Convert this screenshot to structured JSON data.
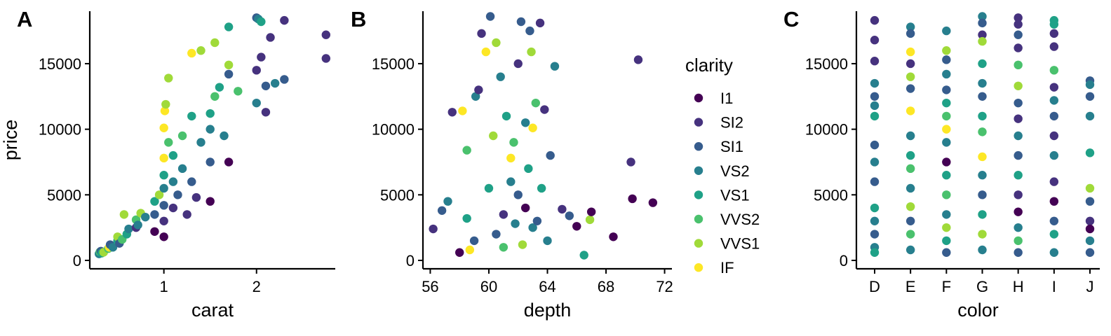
{
  "legend": {
    "title": "clarity",
    "entries": [
      {
        "label": "I1",
        "color": "#440154"
      },
      {
        "label": "SI2",
        "color": "#46327e"
      },
      {
        "label": "SI1",
        "color": "#365c8d"
      },
      {
        "label": "VS2",
        "color": "#277f8e"
      },
      {
        "label": "VS1",
        "color": "#1fa187"
      },
      {
        "label": "VVS2",
        "color": "#4ac16d"
      },
      {
        "label": "VVS1",
        "color": "#a0da39"
      },
      {
        "label": "IF",
        "color": "#fde725"
      }
    ]
  },
  "chart_data": [
    {
      "panel": "A",
      "type": "scatter",
      "xlabel": "carat",
      "ylabel": "price",
      "xlim": [
        0.2,
        2.85
      ],
      "ylim": [
        -300,
        19000
      ],
      "xticks": [
        {
          "value": 1,
          "label": "1"
        },
        {
          "value": 2,
          "label": "2"
        }
      ],
      "yticks": [
        {
          "value": 0,
          "label": "0"
        },
        {
          "value": 5000,
          "label": "5000"
        },
        {
          "value": 10000,
          "label": "10000"
        },
        {
          "value": 15000,
          "label": "15000"
        }
      ],
      "color_by": "clarity",
      "points": [
        [
          0.3,
          500,
          3
        ],
        [
          0.31,
          650,
          5
        ],
        [
          0.32,
          700,
          2
        ],
        [
          0.33,
          560,
          4
        ],
        [
          0.35,
          620,
          6
        ],
        [
          0.4,
          900,
          5
        ],
        [
          0.41,
          1000,
          7
        ],
        [
          0.42,
          1200,
          2
        ],
        [
          0.45,
          1000,
          3
        ],
        [
          0.5,
          1500,
          4
        ],
        [
          0.5,
          1800,
          6
        ],
        [
          0.52,
          1300,
          2
        ],
        [
          0.55,
          1600,
          5
        ],
        [
          0.57,
          3500,
          6
        ],
        [
          0.6,
          2000,
          4
        ],
        [
          0.62,
          2400,
          3
        ],
        [
          0.7,
          2500,
          1
        ],
        [
          0.7,
          3100,
          5
        ],
        [
          0.72,
          2700,
          3
        ],
        [
          0.75,
          3600,
          6
        ],
        [
          0.8,
          3300,
          3
        ],
        [
          0.9,
          2200,
          0
        ],
        [
          0.9,
          3500,
          2
        ],
        [
          0.9,
          4500,
          4
        ],
        [
          0.95,
          5000,
          6
        ],
        [
          1.0,
          1800,
          0
        ],
        [
          1.0,
          3000,
          1
        ],
        [
          1.0,
          4200,
          2
        ],
        [
          1.0,
          5500,
          3
        ],
        [
          1.0,
          6500,
          4
        ],
        [
          1.0,
          7800,
          7
        ],
        [
          1.0,
          10100,
          7
        ],
        [
          1.01,
          11400,
          7
        ],
        [
          1.02,
          11900,
          6
        ],
        [
          1.05,
          9000,
          5
        ],
        [
          1.05,
          13900,
          6
        ],
        [
          1.1,
          4000,
          1
        ],
        [
          1.1,
          6000,
          3
        ],
        [
          1.1,
          8000,
          4
        ],
        [
          1.15,
          5000,
          2
        ],
        [
          1.2,
          7000,
          3
        ],
        [
          1.2,
          9500,
          5
        ],
        [
          1.25,
          3500,
          1
        ],
        [
          1.3,
          6000,
          2
        ],
        [
          1.3,
          11000,
          4
        ],
        [
          1.3,
          15800,
          7
        ],
        [
          1.35,
          4800,
          1
        ],
        [
          1.4,
          9000,
          3
        ],
        [
          1.4,
          16000,
          6
        ],
        [
          1.5,
          4500,
          0
        ],
        [
          1.5,
          7500,
          2
        ],
        [
          1.5,
          10000,
          3
        ],
        [
          1.5,
          11200,
          4
        ],
        [
          1.55,
          12500,
          5
        ],
        [
          1.55,
          16600,
          6
        ],
        [
          1.6,
          13200,
          4
        ],
        [
          1.65,
          9500,
          3
        ],
        [
          1.7,
          7500,
          0
        ],
        [
          1.7,
          14200,
          2
        ],
        [
          1.7,
          14900,
          6
        ],
        [
          1.7,
          17800,
          4
        ],
        [
          1.8,
          12900,
          5
        ],
        [
          2.0,
          12000,
          3
        ],
        [
          2.0,
          14500,
          1
        ],
        [
          2.0,
          18500,
          2
        ],
        [
          2.02,
          18400,
          3
        ],
        [
          2.05,
          18200,
          4
        ],
        [
          2.05,
          15500,
          1
        ],
        [
          2.1,
          11300,
          1
        ],
        [
          2.1,
          13300,
          2
        ],
        [
          2.15,
          17000,
          1
        ],
        [
          2.2,
          13500,
          3
        ],
        [
          2.3,
          13800,
          2
        ],
        [
          2.3,
          18300,
          1
        ],
        [
          2.75,
          17200,
          1
        ],
        [
          2.75,
          15400,
          1
        ]
      ]
    },
    {
      "panel": "B",
      "type": "scatter",
      "xlabel": "depth",
      "ylabel": "",
      "xlim": [
        55.5,
        72.5
      ],
      "ylim": [
        -300,
        19000
      ],
      "xticks": [
        {
          "value": 56,
          "label": "56"
        },
        {
          "value": 60,
          "label": "60"
        },
        {
          "value": 64,
          "label": "64"
        },
        {
          "value": 68,
          "label": "68"
        },
        {
          "value": 72,
          "label": "72"
        }
      ],
      "yticks": [
        {
          "value": 0,
          "label": "0"
        },
        {
          "value": 5000,
          "label": "5000"
        },
        {
          "value": 10000,
          "label": "10000"
        },
        {
          "value": 15000,
          "label": "15000"
        }
      ],
      "color_by": "clarity",
      "points": [
        [
          56.2,
          2400,
          1
        ],
        [
          56.8,
          3800,
          2
        ],
        [
          57.2,
          4500,
          3
        ],
        [
          57.5,
          11300,
          1
        ],
        [
          58,
          600,
          0
        ],
        [
          58.2,
          11400,
          7
        ],
        [
          58.5,
          3200,
          4
        ],
        [
          58.5,
          8400,
          5
        ],
        [
          58.7,
          800,
          7
        ],
        [
          59,
          1500,
          2
        ],
        [
          59.1,
          12500,
          3
        ],
        [
          59.3,
          13000,
          1
        ],
        [
          59.5,
          17300,
          1
        ],
        [
          59.8,
          15900,
          7
        ],
        [
          60,
          5500,
          4
        ],
        [
          60.1,
          18600,
          2
        ],
        [
          60.3,
          9500,
          6
        ],
        [
          60.5,
          16600,
          6
        ],
        [
          60.5,
          2000,
          2
        ],
        [
          60.8,
          14000,
          3
        ],
        [
          61,
          1000,
          5
        ],
        [
          61,
          3500,
          1
        ],
        [
          61.2,
          11000,
          4
        ],
        [
          61.5,
          6000,
          3
        ],
        [
          61.5,
          7800,
          7
        ],
        [
          61.7,
          9000,
          5
        ],
        [
          61.8,
          2800,
          3
        ],
        [
          62,
          15000,
          1
        ],
        [
          62,
          5000,
          2
        ],
        [
          62.2,
          18200,
          2
        ],
        [
          62.3,
          1200,
          6
        ],
        [
          62.5,
          4000,
          0
        ],
        [
          62.5,
          10500,
          3
        ],
        [
          62.7,
          7000,
          4
        ],
        [
          62.8,
          17500,
          2
        ],
        [
          62.9,
          15900,
          6
        ],
        [
          63,
          10100,
          7
        ],
        [
          63,
          2500,
          3
        ],
        [
          63.2,
          12000,
          5
        ],
        [
          63.3,
          3000,
          2
        ],
        [
          63.5,
          18100,
          1
        ],
        [
          63.6,
          5500,
          4
        ],
        [
          63.8,
          11500,
          1
        ],
        [
          64,
          1500,
          3
        ],
        [
          64.2,
          8000,
          2
        ],
        [
          64.5,
          14800,
          3
        ],
        [
          65,
          3900,
          1
        ],
        [
          65.5,
          3400,
          2
        ],
        [
          66,
          2600,
          0
        ],
        [
          66.5,
          400,
          4
        ],
        [
          66.9,
          3100,
          6
        ],
        [
          67,
          3700,
          0
        ],
        [
          68.5,
          1800,
          0
        ],
        [
          69.7,
          7500,
          1
        ],
        [
          69.8,
          4700,
          0
        ],
        [
          70.2,
          15300,
          1
        ],
        [
          71.2,
          4400,
          0
        ]
      ]
    },
    {
      "panel": "C",
      "type": "scatter",
      "xlabel": "color",
      "ylabel": "",
      "categories": [
        "D",
        "E",
        "F",
        "G",
        "H",
        "I",
        "J"
      ],
      "ylim": [
        -300,
        19000
      ],
      "yticks": [
        {
          "value": 0,
          "label": "0"
        },
        {
          "value": 5000,
          "label": "5000"
        },
        {
          "value": 10000,
          "label": "10000"
        },
        {
          "value": 15000,
          "label": "15000"
        }
      ],
      "color_by": "clarity",
      "points": [
        [
          "D",
          18300,
          1
        ],
        [
          "D",
          16800,
          1
        ],
        [
          "D",
          15200,
          1
        ],
        [
          "D",
          13500,
          3
        ],
        [
          "D",
          12500,
          2
        ],
        [
          "D",
          11800,
          3
        ],
        [
          "D",
          11000,
          4
        ],
        [
          "D",
          8800,
          2
        ],
        [
          "D",
          7500,
          3
        ],
        [
          "D",
          6000,
          2
        ],
        [
          "D",
          4000,
          4
        ],
        [
          "D",
          3000,
          3
        ],
        [
          "D",
          2000,
          2
        ],
        [
          "D",
          1000,
          3
        ],
        [
          "D",
          600,
          4
        ],
        [
          "E",
          17800,
          3
        ],
        [
          "E",
          17300,
          2
        ],
        [
          "E",
          15900,
          7
        ],
        [
          "E",
          15000,
          1
        ],
        [
          "E",
          14000,
          6
        ],
        [
          "E",
          13100,
          2
        ],
        [
          "E",
          11400,
          7
        ],
        [
          "E",
          9500,
          3
        ],
        [
          "E",
          8000,
          4
        ],
        [
          "E",
          7000,
          5
        ],
        [
          "E",
          5500,
          3
        ],
        [
          "E",
          4100,
          6
        ],
        [
          "E",
          3000,
          2
        ],
        [
          "E",
          2000,
          5
        ],
        [
          "E",
          800,
          3
        ],
        [
          "F",
          17500,
          3
        ],
        [
          "F",
          16000,
          6
        ],
        [
          "F",
          15300,
          2
        ],
        [
          "F",
          14200,
          3
        ],
        [
          "F",
          13000,
          2
        ],
        [
          "F",
          12000,
          4
        ],
        [
          "F",
          11000,
          5
        ],
        [
          "F",
          10000,
          7
        ],
        [
          "F",
          9000,
          3
        ],
        [
          "F",
          7500,
          0
        ],
        [
          "F",
          6500,
          4
        ],
        [
          "F",
          5000,
          5
        ],
        [
          "F",
          3500,
          3
        ],
        [
          "F",
          2500,
          6
        ],
        [
          "F",
          1500,
          4
        ],
        [
          "F",
          600,
          2
        ],
        [
          "G",
          18600,
          3
        ],
        [
          "G",
          18100,
          2
        ],
        [
          "G",
          17200,
          1
        ],
        [
          "G",
          16700,
          6
        ],
        [
          "G",
          15000,
          4
        ],
        [
          "G",
          13500,
          3
        ],
        [
          "G",
          12500,
          2
        ],
        [
          "G",
          11000,
          4
        ],
        [
          "G",
          9800,
          5
        ],
        [
          "G",
          7900,
          7
        ],
        [
          "G",
          6500,
          3
        ],
        [
          "G",
          5000,
          2
        ],
        [
          "G",
          3500,
          4
        ],
        [
          "G",
          2000,
          6
        ],
        [
          "G",
          800,
          3
        ],
        [
          "H",
          18500,
          1
        ],
        [
          "H",
          18000,
          1
        ],
        [
          "H",
          17200,
          2
        ],
        [
          "H",
          16200,
          1
        ],
        [
          "H",
          14900,
          5
        ],
        [
          "H",
          13300,
          6
        ],
        [
          "H",
          12000,
          2
        ],
        [
          "H",
          10800,
          1
        ],
        [
          "H",
          9500,
          3
        ],
        [
          "H",
          8000,
          2
        ],
        [
          "H",
          6500,
          4
        ],
        [
          "H",
          5000,
          1
        ],
        [
          "H",
          3700,
          0
        ],
        [
          "H",
          2500,
          3
        ],
        [
          "H",
          1500,
          5
        ],
        [
          "H",
          600,
          2
        ],
        [
          "I",
          18300,
          4
        ],
        [
          "I",
          18000,
          4
        ],
        [
          "I",
          17300,
          1
        ],
        [
          "I",
          16300,
          1
        ],
        [
          "I",
          14500,
          5
        ],
        [
          "I",
          13200,
          1
        ],
        [
          "I",
          12200,
          3
        ],
        [
          "I",
          11000,
          2
        ],
        [
          "I",
          9500,
          1
        ],
        [
          "I",
          8000,
          3
        ],
        [
          "I",
          6000,
          1
        ],
        [
          "I",
          4500,
          0
        ],
        [
          "I",
          3000,
          2
        ],
        [
          "I",
          2000,
          4
        ],
        [
          "I",
          600,
          3
        ],
        [
          "J",
          13700,
          2
        ],
        [
          "J",
          13400,
          3
        ],
        [
          "J",
          12500,
          2
        ],
        [
          "J",
          11000,
          3
        ],
        [
          "J",
          8200,
          4
        ],
        [
          "J",
          5500,
          6
        ],
        [
          "J",
          4500,
          2
        ],
        [
          "J",
          3000,
          1
        ],
        [
          "J",
          2400,
          0
        ],
        [
          "J",
          1500,
          3
        ],
        [
          "J",
          600,
          2
        ]
      ]
    }
  ]
}
